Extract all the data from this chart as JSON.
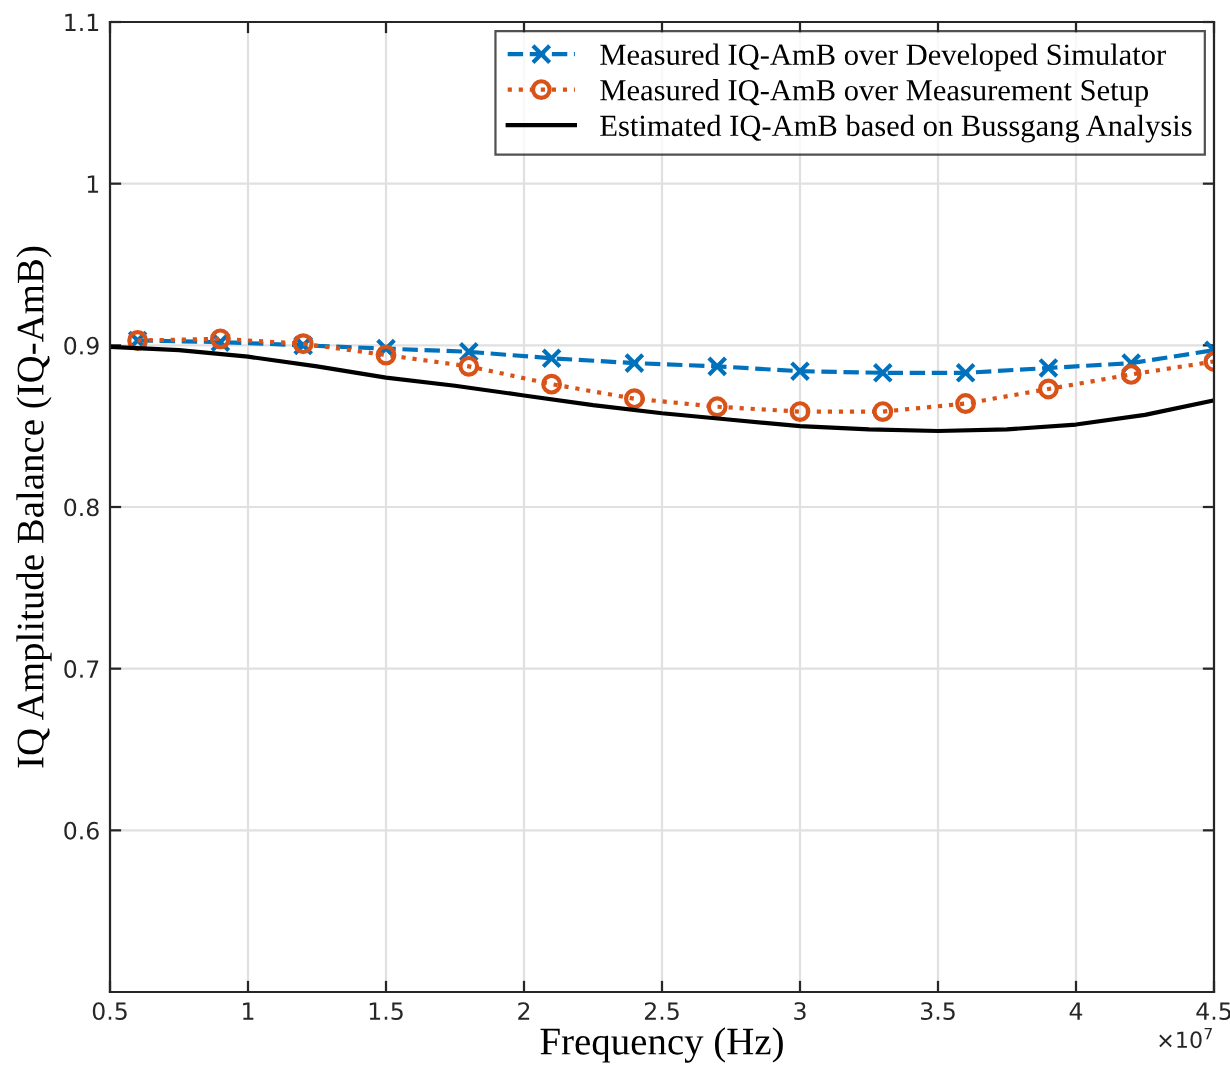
{
  "chart_data": {
    "type": "line",
    "xlabel": "Frequency (Hz)",
    "ylabel": "IQ Amplitude Balance (IQ-AmB)",
    "xlim": [
      0.5,
      4.5
    ],
    "xticks": [
      0.5,
      1,
      1.5,
      2,
      2.5,
      3,
      3.5,
      4,
      4.5
    ],
    "ylim": [
      0.5,
      1.1
    ],
    "yticks": [
      0.6,
      0.7,
      0.8,
      0.9,
      1,
      1.1
    ],
    "grid": true,
    "legend": "top right",
    "annotations": [
      "×10$^{7}$"
    ],
    "series": [
      {
        "name": "Measured IQ-AmB over Developed Simulator",
        "color": "#0072bd",
        "marker": "cross",
        "line_style": "dashed",
        "x": [
          0.6,
          0.9,
          1.2,
          1.5,
          1.8,
          2.1,
          2.4,
          2.7,
          3.0,
          3.3,
          3.6,
          3.9,
          4.2,
          4.5
        ],
        "values": [
          0.903,
          0.902,
          0.9,
          0.898,
          0.896,
          0.892,
          0.889,
          0.887,
          0.884,
          0.883,
          0.883,
          0.886,
          0.889,
          0.897
        ]
      },
      {
        "name": "Measured IQ-AmB over Measurement Setup",
        "color": "#d95319",
        "marker": "circle",
        "line_style": "dotted",
        "x": [
          0.6,
          0.9,
          1.2,
          1.5,
          1.8,
          2.1,
          2.4,
          2.7,
          3.0,
          3.3,
          3.6,
          3.9,
          4.2,
          4.5
        ],
        "values": [
          0.903,
          0.904,
          0.901,
          0.894,
          0.887,
          0.876,
          0.867,
          0.862,
          0.859,
          0.859,
          0.864,
          0.873,
          0.882,
          0.89
        ]
      },
      {
        "name": "Estimated IQ-AmB based on Bussgang Analysis",
        "color": "#000000",
        "marker": "none",
        "line_style": "solid",
        "x": [
          0.5,
          0.75,
          1.0,
          1.25,
          1.5,
          1.75,
          2.0,
          2.25,
          2.5,
          2.75,
          3.0,
          3.25,
          3.5,
          3.75,
          4.0,
          4.25,
          4.5
        ],
        "values": [
          0.899,
          0.897,
          0.893,
          0.887,
          0.88,
          0.875,
          0.869,
          0.863,
          0.858,
          0.854,
          0.85,
          0.848,
          0.847,
          0.848,
          0.851,
          0.857,
          0.866
        ]
      }
    ]
  }
}
